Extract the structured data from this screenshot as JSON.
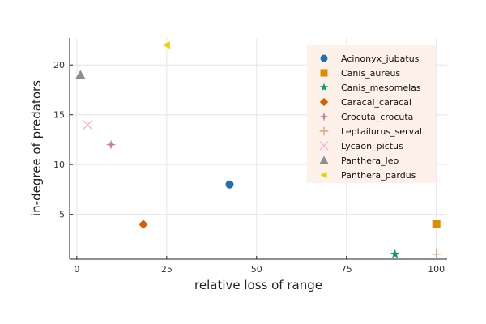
{
  "chart_data": {
    "type": "scatter",
    "title": "",
    "xlabel": "relative loss of range",
    "ylabel": "in-degree of predators",
    "xlim": [
      -2,
      103
    ],
    "ylim": [
      0.5,
      22.7
    ],
    "xticks": [
      0,
      25,
      50,
      75,
      100
    ],
    "yticks": [
      5,
      10,
      15,
      20
    ],
    "grid": true,
    "legend_position": "top-right",
    "series": [
      {
        "name": "Acinonyx_jubatus",
        "marker": "circle",
        "color": "#1f6fb4",
        "x": [
          42.5
        ],
        "y": [
          8
        ]
      },
      {
        "name": "Canis_aureus",
        "marker": "square",
        "color": "#e08c00",
        "x": [
          100
        ],
        "y": [
          4
        ]
      },
      {
        "name": "Canis_mesomelas",
        "marker": "star",
        "color": "#109a73",
        "x": [
          88.5
        ],
        "y": [
          1
        ]
      },
      {
        "name": "Caracal_caracal",
        "marker": "diamond",
        "color": "#d55e00",
        "x": [
          18.5
        ],
        "y": [
          4
        ]
      },
      {
        "name": "Crocuta_crocuta",
        "marker": "star4",
        "color": "#cc79a7",
        "x": [
          9.5
        ],
        "y": [
          12
        ]
      },
      {
        "name": "Leptailurus_serval",
        "marker": "plus",
        "color": "#d8a878",
        "x": [
          100
        ],
        "y": [
          1
        ]
      },
      {
        "name": "Lycaon_pictus",
        "marker": "cross",
        "color": "#eeb6dc",
        "x": [
          3
        ],
        "y": [
          14
        ]
      },
      {
        "name": "Panthera_leo",
        "marker": "triangle",
        "color": "#8e8e8e",
        "x": [
          1
        ],
        "y": [
          19
        ]
      },
      {
        "name": "Panthera_pardus",
        "marker": "ltriangle",
        "color": "#f0d000",
        "x": [
          25
        ],
        "y": [
          22
        ]
      }
    ]
  }
}
